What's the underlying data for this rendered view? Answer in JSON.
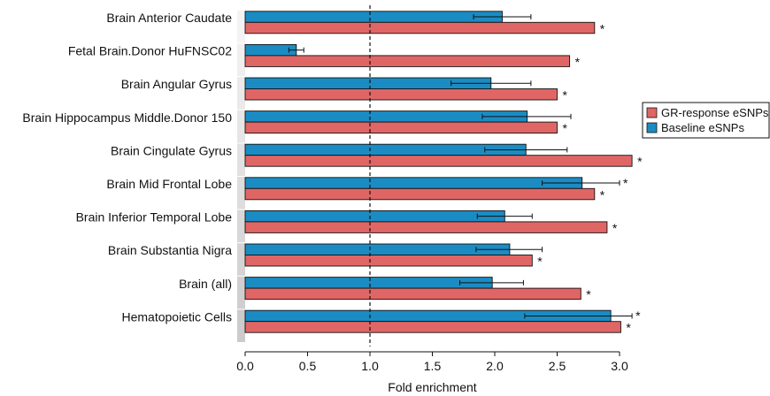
{
  "chart_data": {
    "type": "bar",
    "orientation": "horizontal",
    "categories": [
      "Brain Anterior Caudate",
      "Fetal Brain.Donor HuFNSC02",
      "Brain Angular Gyrus",
      "Brain Hippocampus Middle.Donor 150",
      "Brain Cingulate Gyrus",
      "Brain Mid Frontal Lobe",
      "Brain Inferior Temporal Lobe",
      "Brain Substantia Nigra",
      "Brain (all)",
      "Hematopoietic Cells"
    ],
    "series": [
      {
        "name": "Baseline eSNPs",
        "color": "#1b8cc3",
        "values": [
          2.06,
          0.41,
          1.97,
          2.26,
          2.25,
          2.7,
          2.08,
          2.12,
          1.98,
          2.93
        ],
        "error_low": [
          1.83,
          0.35,
          1.65,
          1.9,
          1.92,
          2.38,
          1.86,
          1.85,
          1.72,
          2.24
        ],
        "error_high": [
          2.29,
          0.47,
          2.29,
          2.61,
          2.58,
          3.0,
          2.3,
          2.38,
          2.23,
          3.1
        ],
        "significant": [
          false,
          false,
          false,
          false,
          false,
          true,
          false,
          false,
          false,
          true
        ]
      },
      {
        "name": "GR-response eSNPs",
        "color": "#e06666",
        "values": [
          2.8,
          2.6,
          2.5,
          2.5,
          3.1,
          2.8,
          2.9,
          2.3,
          2.69,
          3.01
        ],
        "significant": [
          true,
          true,
          true,
          true,
          true,
          true,
          true,
          true,
          true,
          true
        ]
      }
    ],
    "xlabel": "Fold enrichment",
    "xlim": [
      0.0,
      3.1
    ],
    "xticks": [
      "0.0",
      "0.5",
      "1.0",
      "1.5",
      "2.0",
      "2.5",
      "3.0"
    ],
    "reference_line": 1.0,
    "significance_marker": "*",
    "legend": {
      "placement": "right",
      "entries": [
        "GR-response eSNPs",
        "Baseline eSNPs"
      ]
    },
    "grid": false
  }
}
